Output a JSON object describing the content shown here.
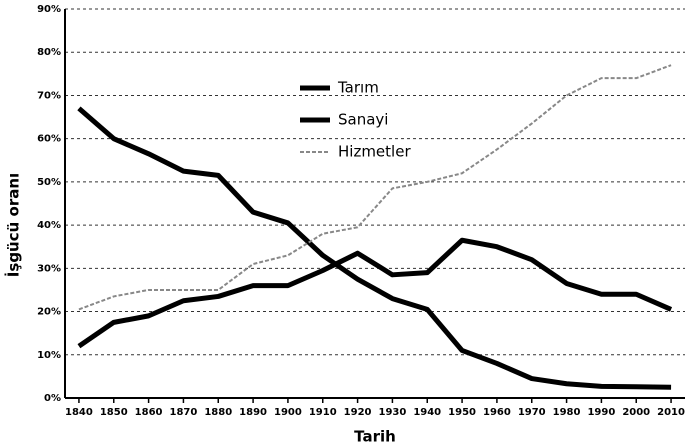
{
  "chart_data": {
    "type": "line",
    "x_label": "Tarih",
    "y_label": "İşgücü oranı",
    "x": [
      1840,
      1850,
      1860,
      1870,
      1880,
      1890,
      1900,
      1910,
      1920,
      1930,
      1940,
      1950,
      1960,
      1970,
      1980,
      1990,
      2000,
      2010
    ],
    "series": [
      {
        "name": "Tarım",
        "color": "#000000",
        "width": 5,
        "dashed": false,
        "values": [
          67,
          60,
          56.5,
          52.5,
          51.5,
          43,
          40.5,
          33,
          27.5,
          23,
          20.5,
          11,
          8,
          4.5,
          3.3,
          2.7,
          2.6,
          2.5
        ]
      },
      {
        "name": "Sanayi",
        "color": "#000000",
        "width": 5,
        "dashed": false,
        "values": [
          12,
          17.5,
          19,
          22.5,
          23.5,
          26,
          26,
          29.5,
          33.5,
          28.5,
          29,
          36.5,
          35,
          32,
          26.5,
          24,
          24,
          20.5
        ]
      },
      {
        "name": "Hizmetler",
        "color": "#888888",
        "width": 2,
        "dashed": true,
        "values": [
          20.5,
          23.5,
          25,
          25,
          25,
          31,
          33,
          38,
          39.5,
          48.5,
          50,
          52,
          57.5,
          63.5,
          70,
          74,
          74,
          77
        ]
      }
    ],
    "xlim": [
      1836,
      2014
    ],
    "xticks": [
      1840,
      1850,
      1860,
      1870,
      1880,
      1890,
      1900,
      1910,
      1920,
      1930,
      1940,
      1950,
      1960,
      1970,
      1980,
      1990,
      2000,
      2010
    ],
    "ylim": [
      0,
      90
    ],
    "yticks": [
      {
        "value": 0,
        "label": "0%"
      },
      {
        "value": 10,
        "label": "10%"
      },
      {
        "value": 20,
        "label": "20%"
      },
      {
        "value": 30,
        "label": "30%"
      },
      {
        "value": 40,
        "label": "40%"
      },
      {
        "value": 50,
        "label": "50%"
      },
      {
        "value": 60,
        "label": "60%"
      },
      {
        "value": 70,
        "label": "70%"
      },
      {
        "value": 80,
        "label": "80%"
      },
      {
        "value": 90,
        "label": "90%"
      }
    ],
    "grid": true,
    "legend": "upper center"
  }
}
